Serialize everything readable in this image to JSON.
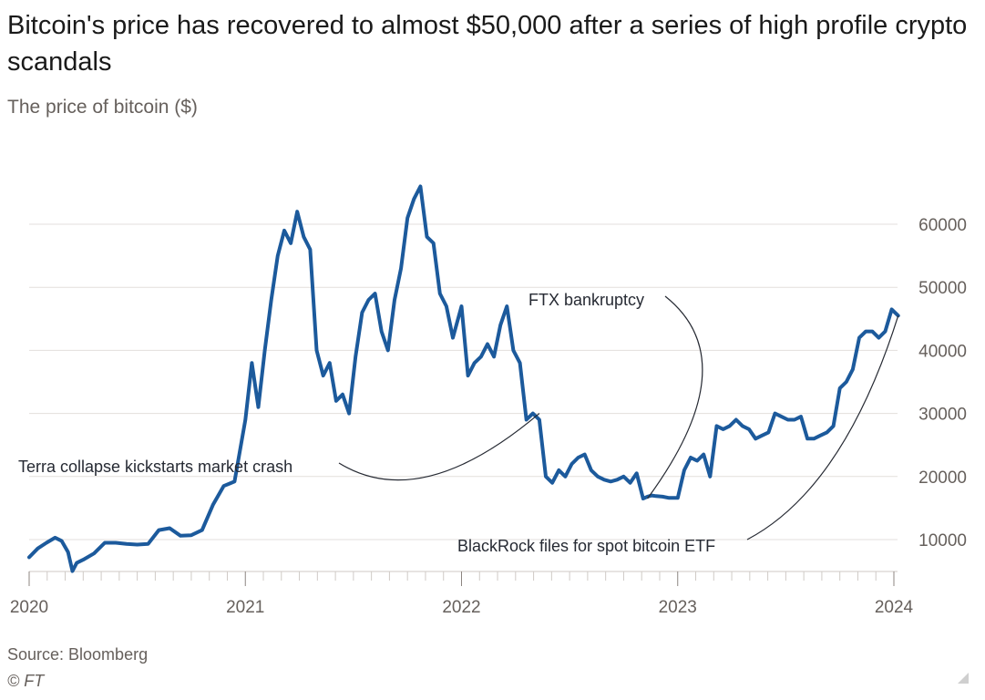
{
  "chart_data": {
    "type": "line",
    "title": "Bitcoin's price has recovered to almost $50,000 after a series of high profile crypto scandals",
    "subtitle": "The price of bitcoin ($)",
    "ylim": [
      4000,
      67000
    ],
    "xlim": [
      2020.0,
      2024.03
    ],
    "yticks": [
      10000,
      20000,
      30000,
      40000,
      50000,
      60000
    ],
    "ytick_labels": [
      "10000",
      "20000",
      "30000",
      "40000",
      "50000",
      "60000"
    ],
    "xticks": [
      2020,
      2021,
      2022,
      2023,
      2024
    ],
    "xtick_labels": [
      "2020",
      "2021",
      "2022",
      "2023",
      "2024"
    ],
    "series": [
      {
        "name": "Bitcoin price",
        "color": "#1c5a9c",
        "x": [
          2020.0,
          2020.04,
          2020.08,
          2020.12,
          2020.15,
          2020.18,
          2020.2,
          2020.22,
          2020.25,
          2020.3,
          2020.35,
          2020.4,
          2020.45,
          2020.5,
          2020.55,
          2020.6,
          2020.65,
          2020.7,
          2020.75,
          2020.8,
          2020.85,
          2020.9,
          2020.95,
          2021.0,
          2021.03,
          2021.06,
          2021.09,
          2021.12,
          2021.15,
          2021.18,
          2021.21,
          2021.24,
          2021.27,
          2021.3,
          2021.33,
          2021.36,
          2021.39,
          2021.42,
          2021.45,
          2021.48,
          2021.51,
          2021.54,
          2021.57,
          2021.6,
          2021.63,
          2021.66,
          2021.69,
          2021.72,
          2021.75,
          2021.78,
          2021.81,
          2021.84,
          2021.87,
          2021.9,
          2021.93,
          2021.96,
          2022.0,
          2022.03,
          2022.06,
          2022.09,
          2022.12,
          2022.15,
          2022.18,
          2022.21,
          2022.24,
          2022.27,
          2022.3,
          2022.33,
          2022.36,
          2022.39,
          2022.42,
          2022.45,
          2022.48,
          2022.51,
          2022.54,
          2022.57,
          2022.6,
          2022.63,
          2022.66,
          2022.69,
          2022.72,
          2022.75,
          2022.78,
          2022.81,
          2022.84,
          2022.86,
          2022.88,
          2022.9,
          2022.93,
          2022.96,
          2023.0,
          2023.03,
          2023.06,
          2023.09,
          2023.12,
          2023.15,
          2023.18,
          2023.21,
          2023.24,
          2023.27,
          2023.3,
          2023.33,
          2023.36,
          2023.39,
          2023.42,
          2023.45,
          2023.48,
          2023.51,
          2023.54,
          2023.57,
          2023.6,
          2023.63,
          2023.66,
          2023.69,
          2023.72,
          2023.75,
          2023.78,
          2023.81,
          2023.84,
          2023.87,
          2023.9,
          2023.93,
          2023.96,
          2023.99,
          2024.02
        ],
        "values": [
          7200,
          8600,
          9500,
          10300,
          9800,
          8000,
          5000,
          6300,
          6800,
          7800,
          9500,
          9500,
          9300,
          9200,
          9300,
          11500,
          11800,
          10600,
          10700,
          11500,
          15500,
          18500,
          19200,
          29000,
          38000,
          31000,
          40000,
          48000,
          55000,
          59000,
          57000,
          62000,
          58000,
          56000,
          40000,
          36000,
          38000,
          32000,
          33000,
          30000,
          39000,
          46000,
          48000,
          49000,
          43000,
          40000,
          48000,
          53000,
          61000,
          64000,
          66000,
          58000,
          57000,
          49000,
          47000,
          42000,
          47000,
          36000,
          38000,
          39000,
          41000,
          39000,
          44000,
          47000,
          40000,
          38000,
          29000,
          30000,
          29000,
          20000,
          19000,
          21000,
          20000,
          22000,
          23000,
          23500,
          21000,
          20000,
          19500,
          19200,
          19500,
          20000,
          19000,
          20500,
          16500,
          16800,
          17000,
          16900,
          16800,
          16600,
          16600,
          21000,
          23000,
          22500,
          23500,
          20000,
          28000,
          27500,
          28000,
          29000,
          28000,
          27500,
          26000,
          26500,
          27000,
          30000,
          29500,
          29000,
          29000,
          29500,
          26000,
          26000,
          26500,
          27000,
          28000,
          34000,
          35000,
          37000,
          42000,
          43000,
          43000,
          42000,
          43000,
          46500,
          45500
        ]
      }
    ],
    "annotations": [
      {
        "text": "Terra collapse kickstarts market crash",
        "x": 2022.36,
        "y": 30000
      },
      {
        "text": "FTX bankruptcy",
        "x": 2022.86,
        "y": 16500
      },
      {
        "text": "BlackRock files for spot bitcoin ETF",
        "x": 2024.02,
        "y": 45500
      }
    ]
  },
  "footer": {
    "source": "Source: Bloomberg",
    "copyright": "© FT"
  }
}
